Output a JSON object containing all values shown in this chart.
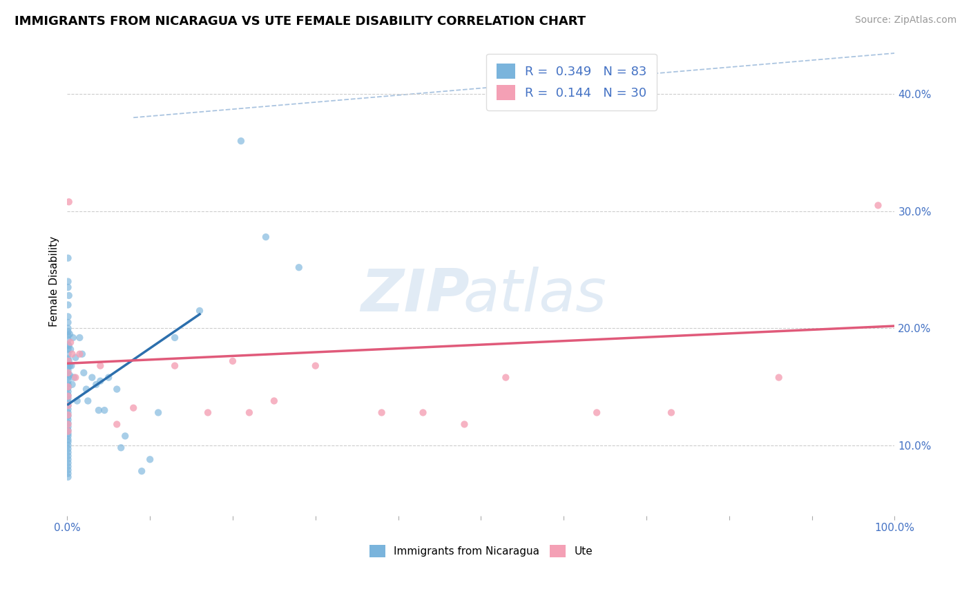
{
  "title": "IMMIGRANTS FROM NICARAGUA VS UTE FEMALE DISABILITY CORRELATION CHART",
  "source": "Source: ZipAtlas.com",
  "ylabel": "Female Disability",
  "xlim": [
    0.0,
    1.0
  ],
  "ylim": [
    0.04,
    0.44
  ],
  "y_tick_labels": [
    "10.0%",
    "20.0%",
    "30.0%",
    "40.0%"
  ],
  "y_tick_positions": [
    0.1,
    0.2,
    0.3,
    0.4
  ],
  "color_blue": "#7ab4dc",
  "color_pink": "#f4a0b5",
  "color_blue_line": "#2c6fad",
  "color_pink_line": "#e05a7a",
  "blue_scatter": [
    [
      0.001,
      0.26
    ],
    [
      0.001,
      0.24
    ],
    [
      0.001,
      0.235
    ],
    [
      0.001,
      0.22
    ],
    [
      0.001,
      0.21
    ],
    [
      0.001,
      0.205
    ],
    [
      0.001,
      0.2
    ],
    [
      0.001,
      0.197
    ],
    [
      0.001,
      0.194
    ],
    [
      0.001,
      0.19
    ],
    [
      0.001,
      0.186
    ],
    [
      0.001,
      0.182
    ],
    [
      0.001,
      0.178
    ],
    [
      0.001,
      0.174
    ],
    [
      0.001,
      0.17
    ],
    [
      0.001,
      0.167
    ],
    [
      0.001,
      0.164
    ],
    [
      0.001,
      0.161
    ],
    [
      0.001,
      0.158
    ],
    [
      0.001,
      0.155
    ],
    [
      0.001,
      0.152
    ],
    [
      0.001,
      0.149
    ],
    [
      0.001,
      0.146
    ],
    [
      0.001,
      0.143
    ],
    [
      0.001,
      0.14
    ],
    [
      0.001,
      0.137
    ],
    [
      0.001,
      0.134
    ],
    [
      0.001,
      0.131
    ],
    [
      0.001,
      0.128
    ],
    [
      0.001,
      0.125
    ],
    [
      0.001,
      0.122
    ],
    [
      0.001,
      0.119
    ],
    [
      0.001,
      0.116
    ],
    [
      0.001,
      0.113
    ],
    [
      0.001,
      0.11
    ],
    [
      0.001,
      0.108
    ],
    [
      0.001,
      0.105
    ],
    [
      0.001,
      0.103
    ],
    [
      0.001,
      0.1
    ],
    [
      0.001,
      0.097
    ],
    [
      0.001,
      0.094
    ],
    [
      0.001,
      0.091
    ],
    [
      0.001,
      0.088
    ],
    [
      0.001,
      0.085
    ],
    [
      0.001,
      0.082
    ],
    [
      0.001,
      0.079
    ],
    [
      0.001,
      0.076
    ],
    [
      0.001,
      0.073
    ],
    [
      0.002,
      0.228
    ],
    [
      0.002,
      0.185
    ],
    [
      0.002,
      0.172
    ],
    [
      0.003,
      0.195
    ],
    [
      0.003,
      0.168
    ],
    [
      0.003,
      0.16
    ],
    [
      0.004,
      0.182
    ],
    [
      0.005,
      0.168
    ],
    [
      0.006,
      0.152
    ],
    [
      0.007,
      0.192
    ],
    [
      0.008,
      0.158
    ],
    [
      0.01,
      0.175
    ],
    [
      0.012,
      0.138
    ],
    [
      0.015,
      0.192
    ],
    [
      0.018,
      0.178
    ],
    [
      0.02,
      0.162
    ],
    [
      0.023,
      0.148
    ],
    [
      0.025,
      0.138
    ],
    [
      0.03,
      0.158
    ],
    [
      0.035,
      0.152
    ],
    [
      0.038,
      0.13
    ],
    [
      0.04,
      0.155
    ],
    [
      0.045,
      0.13
    ],
    [
      0.05,
      0.158
    ],
    [
      0.06,
      0.148
    ],
    [
      0.065,
      0.098
    ],
    [
      0.07,
      0.108
    ],
    [
      0.09,
      0.078
    ],
    [
      0.1,
      0.088
    ],
    [
      0.11,
      0.128
    ],
    [
      0.13,
      0.192
    ],
    [
      0.16,
      0.215
    ],
    [
      0.21,
      0.36
    ],
    [
      0.24,
      0.278
    ],
    [
      0.28,
      0.252
    ]
  ],
  "pink_scatter": [
    [
      0.001,
      0.172
    ],
    [
      0.001,
      0.162
    ],
    [
      0.001,
      0.15
    ],
    [
      0.001,
      0.142
    ],
    [
      0.001,
      0.134
    ],
    [
      0.001,
      0.126
    ],
    [
      0.001,
      0.118
    ],
    [
      0.001,
      0.112
    ],
    [
      0.002,
      0.308
    ],
    [
      0.004,
      0.188
    ],
    [
      0.006,
      0.178
    ],
    [
      0.01,
      0.158
    ],
    [
      0.015,
      0.178
    ],
    [
      0.04,
      0.168
    ],
    [
      0.06,
      0.118
    ],
    [
      0.08,
      0.132
    ],
    [
      0.13,
      0.168
    ],
    [
      0.17,
      0.128
    ],
    [
      0.2,
      0.172
    ],
    [
      0.22,
      0.128
    ],
    [
      0.25,
      0.138
    ],
    [
      0.3,
      0.168
    ],
    [
      0.38,
      0.128
    ],
    [
      0.43,
      0.128
    ],
    [
      0.48,
      0.118
    ],
    [
      0.53,
      0.158
    ],
    [
      0.64,
      0.128
    ],
    [
      0.73,
      0.128
    ],
    [
      0.86,
      0.158
    ],
    [
      0.98,
      0.305
    ]
  ],
  "blue_line_x": [
    0.001,
    0.16
  ],
  "blue_line_y": [
    0.135,
    0.212
  ],
  "pink_line_x": [
    0.0,
    1.0
  ],
  "pink_line_y": [
    0.17,
    0.202
  ],
  "diag_line_x": [
    0.08,
    1.0
  ],
  "diag_line_y": [
    0.38,
    0.435
  ]
}
